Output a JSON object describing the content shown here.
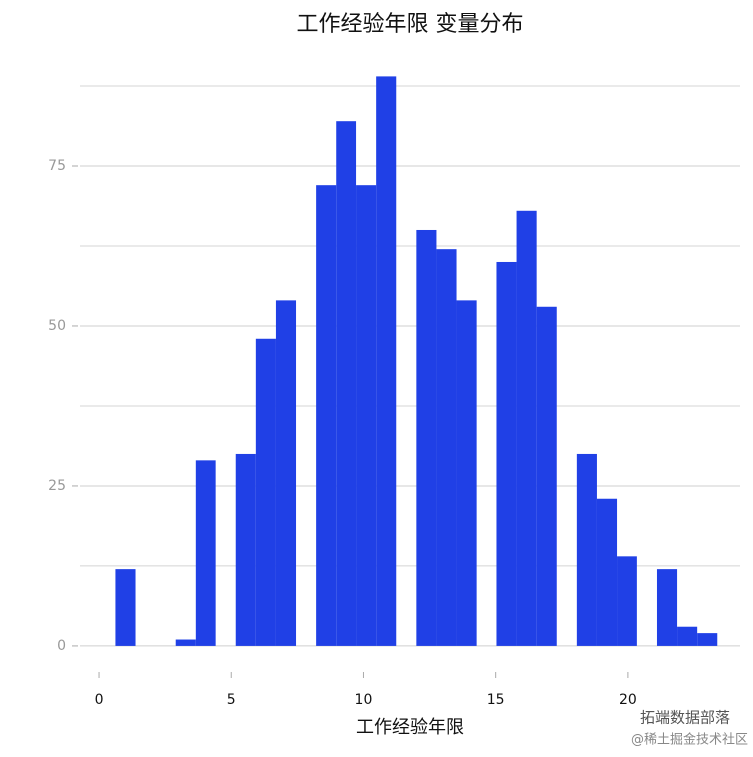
{
  "chart_data": {
    "type": "histogram",
    "title": "工作经验年限 变量分布",
    "x_label": "工作经验年限",
    "bins": [
      0.62,
      1.38,
      2.14,
      2.9,
      3.66,
      4.41,
      5.17,
      5.93,
      6.69,
      7.45,
      8.21,
      8.97,
      9.72,
      10.48,
      11.24,
      12.0,
      12.76,
      13.52,
      14.28,
      15.03,
      15.79,
      16.55,
      17.31,
      18.07,
      18.83,
      19.59,
      20.34,
      21.1,
      21.86,
      22.62,
      23.38
    ],
    "values": [
      12,
      0,
      0,
      1,
      29,
      0,
      30,
      48,
      54,
      0,
      72,
      82,
      72,
      89,
      0,
      65,
      62,
      54,
      0,
      60,
      68,
      53,
      0,
      30,
      23,
      14,
      0,
      12,
      3,
      2
    ],
    "color": "#2040e6",
    "xlim": [
      -0.72,
      24.24
    ],
    "xticks": [
      0,
      5,
      10,
      15,
      20
    ],
    "ylim": [
      -2.2,
      90
    ],
    "yticks": [
      0,
      25,
      50,
      75
    ],
    "y_minor_grid": [
      12.5,
      37.5,
      62.5,
      87.5
    ],
    "grid": true,
    "watermark": [
      "拓端数据部落",
      "@稀土掘金技术社区"
    ]
  }
}
